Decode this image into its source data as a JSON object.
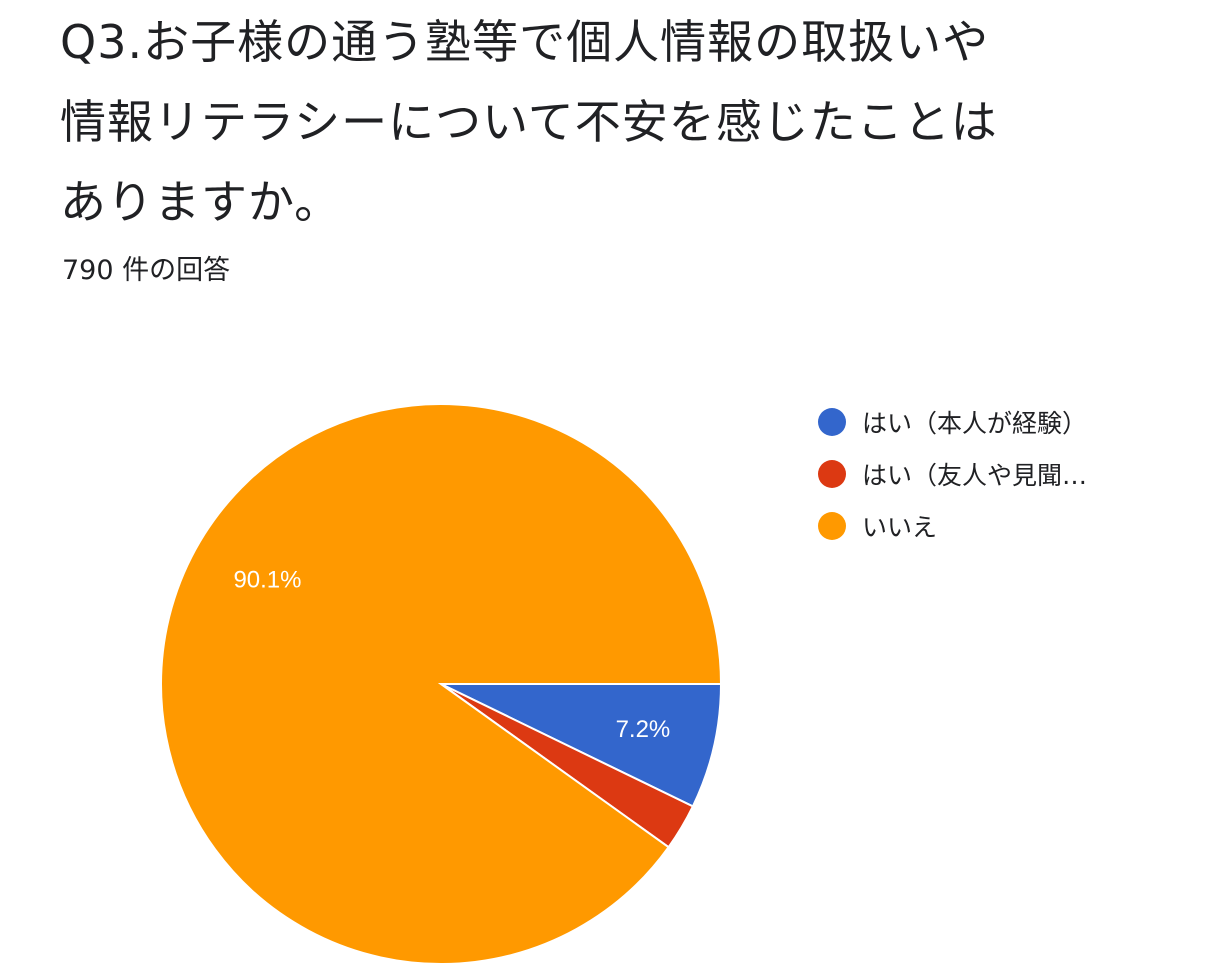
{
  "question": {
    "title": "Q3.お子様の通う塾等で個人情報の取扱いや情報リテラシーについて不安を感じたことはありますか。",
    "response_count": "790 件の回答"
  },
  "chart_data": {
    "type": "pie",
    "title": "Q3.お子様の通う塾等で個人情報の取扱いや情報リテラシーについて不安を感じたことはありますか。",
    "legend_position": "right",
    "slices": [
      {
        "label": "はい（本人が経験）",
        "legend_text": "はい（本人が経験）",
        "value": 7.2,
        "value_label": "7.2%",
        "color": "#3366cc"
      },
      {
        "label": "はい（友人や見聞…",
        "legend_text": "はい（友人や見聞…",
        "value": 2.7,
        "value_label": "",
        "color": "#dc3912"
      },
      {
        "label": "いいえ",
        "legend_text": "いいえ",
        "value": 90.1,
        "value_label": "90.1%",
        "color": "#ff9900"
      }
    ]
  }
}
